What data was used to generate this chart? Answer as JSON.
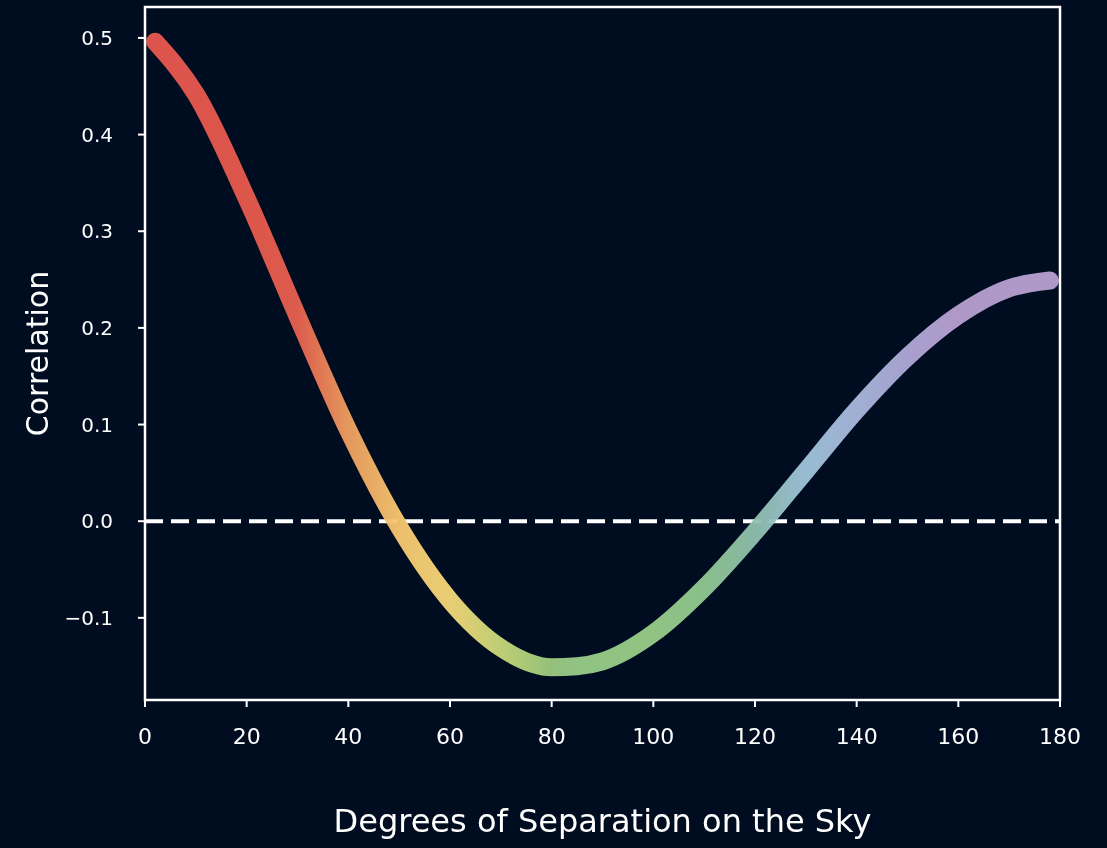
{
  "chart_data": {
    "type": "line",
    "xlabel": "Degrees of Separation on the Sky",
    "ylabel": "Correlation",
    "xlim": [
      0,
      180
    ],
    "xticks": [
      0,
      20,
      40,
      60,
      80,
      100,
      120,
      140,
      160,
      180
    ],
    "ylim": [
      -0.185,
      0.532
    ],
    "yticks": [
      {
        "value": -0.1,
        "label": "−0.1"
      },
      {
        "value": 0,
        "label": "0.0"
      },
      0.1,
      0.2,
      0.3,
      0.4,
      0.5
    ],
    "ref_lines": [
      {
        "axis": "y",
        "value": 0,
        "line_style": "dashed",
        "color": "#ffffff"
      }
    ],
    "series": [
      {
        "x": [
          2,
          10,
          20,
          30,
          40,
          50,
          60,
          70,
          80,
          85,
          90,
          100,
          110,
          120,
          130,
          140,
          150,
          160,
          170,
          178
        ],
        "values": [
          0.496,
          0.442,
          0.334,
          0.212,
          0.094,
          -0.006,
          -0.082,
          -0.131,
          -0.151,
          -0.15,
          -0.145,
          -0.116,
          -0.069,
          -0.011,
          0.052,
          0.115,
          0.17,
          0.213,
          0.241,
          0.249
        ],
        "colors": [
          "#e8584f",
          "#e8584f",
          "#e85a4d",
          "#e8604f",
          "#f0a060",
          "#f8c870",
          "#f5d878",
          "#c8d878",
          "#9cc980",
          "#98cc88",
          "#98cc88",
          "#98cc88",
          "#90c890",
          "#8fbfae",
          "#a0c4dc",
          "#a8b8dc",
          "#b0a8d8",
          "#b8a0d0",
          "#b8a0d0",
          "#b8a0d0"
        ]
      }
    ]
  }
}
